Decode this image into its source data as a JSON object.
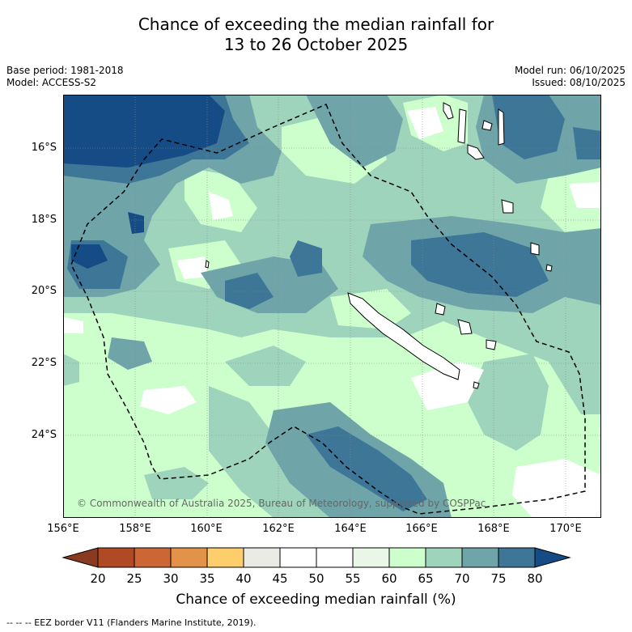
{
  "header": {
    "title_line1": "Chance of exceeding the median rainfall for",
    "title_line2": "13 to 26 October 2025",
    "base_period": "Base period: 1981-2018",
    "model": "Model: ACCESS-S2",
    "model_run": "Model run: 06/10/2025",
    "issued": "Issued: 08/10/2025"
  },
  "map": {
    "lat_labels": [
      "16°S",
      "18°S",
      "20°S",
      "22°S",
      "24°S"
    ],
    "lon_labels": [
      "156°E",
      "158°E",
      "160°E",
      "162°E",
      "164°E",
      "166°E",
      "168°E",
      "170°E"
    ],
    "lon_range": [
      156,
      171
    ],
    "lat_range": [
      -14.8,
      -26.6
    ],
    "copyright": "© Commonwealth of Australia 2025, Bureau of Meteorology, supported by COSPPac"
  },
  "colorbar": {
    "ticks": [
      "20",
      "25",
      "30",
      "35",
      "40",
      "45",
      "50",
      "55",
      "60",
      "65",
      "70",
      "75",
      "80"
    ],
    "colors": [
      "#b04a25",
      "#cd6635",
      "#e39349",
      "#fecd6c",
      "#ebebe6",
      "#ffffff",
      "#ffffff",
      "#eaf7e8",
      "#ccffcc",
      "#9fd4bc",
      "#6fa5a8",
      "#3e7698"
    ],
    "low_color": "#8b3a22",
    "high_color": "#154c85",
    "label": "Chance of exceeding median rainfall (%)"
  },
  "legend": {
    "eez_note": "--  --  -- EEZ border V11 (Flanders Marine Institute, 2019)."
  }
}
